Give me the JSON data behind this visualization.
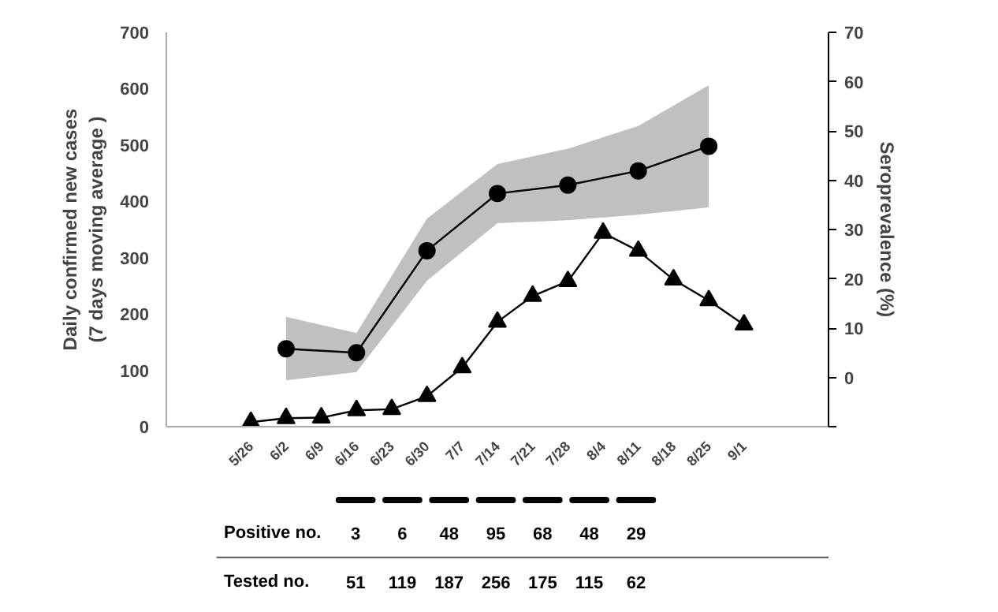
{
  "chart_data": {
    "type": "line",
    "categories": [
      "5/26",
      "6/2",
      "6/9",
      "6/16",
      "6/23",
      "6/30",
      "7/7",
      "7/14",
      "7/21",
      "7/28",
      "8/4",
      "8/11",
      "8/18",
      "8/25",
      "9/1"
    ],
    "series": [
      {
        "color": "#000000",
        "marker": "triangle",
        "values": [
          8,
          15,
          16,
          29,
          31,
          54,
          105,
          186,
          232,
          258,
          344,
          312,
          261,
          224,
          181
        ]
      },
      {
        "color": "#000000",
        "marker": "circle",
        "axis": "y2",
        "values": [
          null,
          5.8,
          null,
          5.0,
          null,
          25.7,
          null,
          37.3,
          null,
          39.0,
          null,
          41.9,
          null,
          46.9,
          null
        ],
        "lower": [
          null,
          -0.6,
          null,
          1.1,
          null,
          19.6,
          null,
          31.3,
          null,
          31.9,
          null,
          33.0,
          null,
          34.5,
          null
        ],
        "upper": [
          null,
          12.3,
          null,
          9.0,
          null,
          32.2,
          null,
          43.3,
          null,
          46.4,
          null,
          51.0,
          null,
          59.3,
          null
        ]
      }
    ],
    "ylabel": "Daily confirmed new cases\n(7 days moving average )",
    "y2label": "Seroprevalence (%)",
    "ylim": [
      0,
      700
    ],
    "yticks": [
      0,
      100,
      200,
      300,
      400,
      500,
      600,
      700
    ],
    "y2lim": [
      -10,
      70
    ],
    "y2ticks": [
      {
        "value": -10,
        "label": null
      },
      0,
      10,
      20,
      30,
      40,
      50,
      60,
      70
    ],
    "grid": false,
    "annotations": [
      "Positive no.",
      "3",
      "6",
      "48",
      "95",
      "68",
      "48",
      "29",
      "Tested no.",
      "51",
      "119",
      "187",
      "256",
      "175",
      "115",
      "62"
    ]
  }
}
